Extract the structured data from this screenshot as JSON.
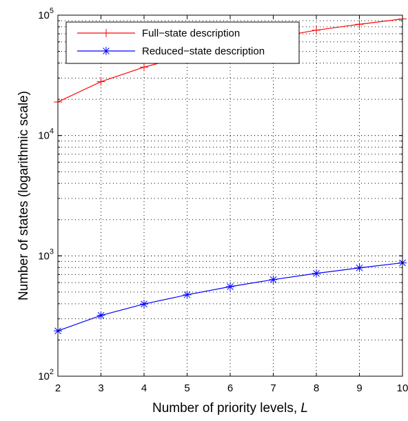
{
  "chart_data": {
    "type": "line",
    "x": [
      2,
      3,
      4,
      5,
      6,
      7,
      8,
      9,
      10
    ],
    "xlim": [
      2,
      10
    ],
    "ylim": [
      100,
      100000
    ],
    "yscale": "log",
    "grid": true,
    "xlabel": "Number of priority levels, ",
    "xlabel_var": "L",
    "ylabel": "Number of states (logarithmic scale)",
    "x_ticks": [
      "2",
      "3",
      "4",
      "5",
      "6",
      "7",
      "8",
      "9",
      "10"
    ],
    "y_ticks": [
      {
        "value": 100,
        "base": "10",
        "exp": "2"
      },
      {
        "value": 1000,
        "base": "10",
        "exp": "3"
      },
      {
        "value": 10000,
        "base": "10",
        "exp": "4"
      },
      {
        "value": 100000,
        "base": "10",
        "exp": "5"
      }
    ],
    "legend_position": "top-left",
    "series": [
      {
        "name": "Full−state description",
        "color": "#ff0000",
        "marker": "plus",
        "values": [
          19000,
          28000,
          37000,
          46000,
          56000,
          65000,
          75000,
          84000,
          93000
        ]
      },
      {
        "name": "Reduced−state description",
        "color": "#0000ff",
        "marker": "asterisk",
        "values": [
          238,
          320,
          398,
          475,
          555,
          635,
          715,
          795,
          875
        ]
      }
    ]
  }
}
